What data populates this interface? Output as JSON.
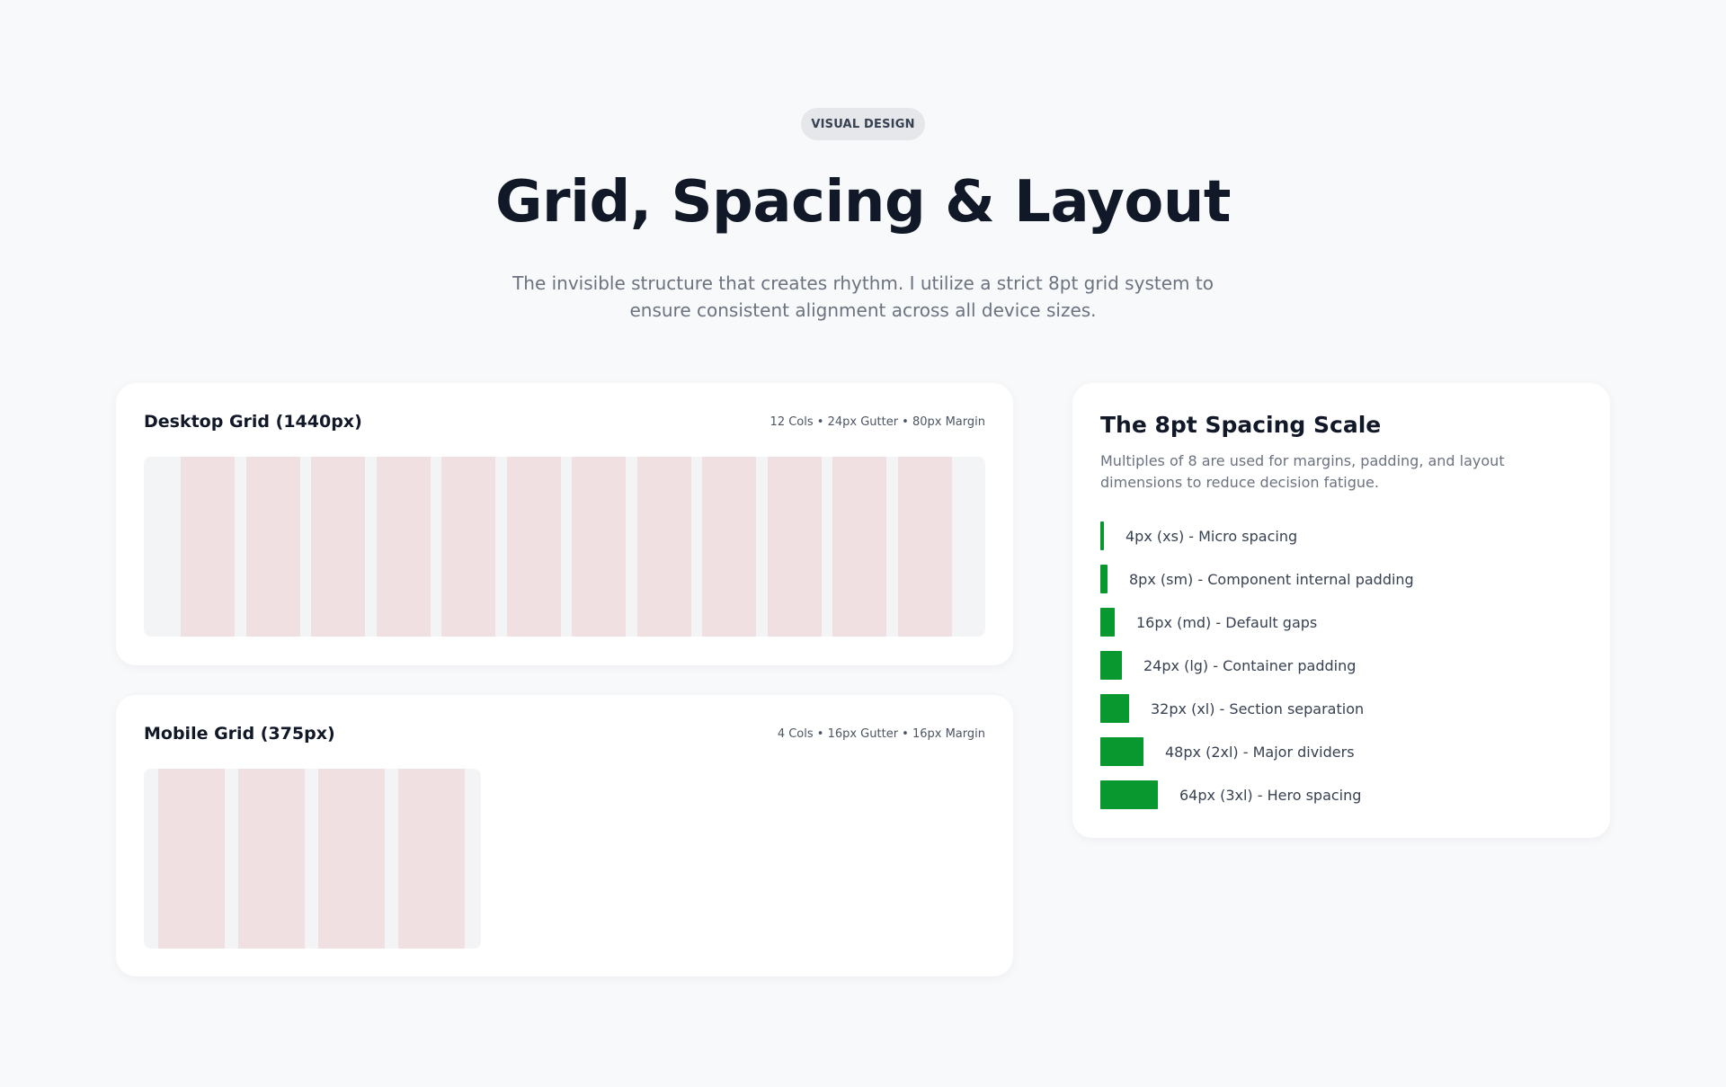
{
  "badge": "VISUAL DESIGN",
  "title": "Grid, Spacing & Layout",
  "subtitle": "The invisible structure that creates rhythm. I utilize a strict 8pt grid system to ensure consistent alignment across all device sizes.",
  "desktop_grid": {
    "title": "Desktop Grid (1440px)",
    "meta": "12 Cols • 24px Gutter • 80px Margin"
  },
  "mobile_grid": {
    "title": "Mobile Grid (375px)",
    "meta": "4 Cols • 16px Gutter • 16px Margin"
  },
  "spacing_scale": {
    "title": "The 8pt Spacing Scale",
    "description": "Multiples of 8 are used for margins, padding, and layout dimensions to reduce decision fatigue.",
    "items": [
      "4px (xs) - Micro spacing",
      "8px (sm) - Component internal padding",
      "16px (md) - Default gaps",
      "24px (lg) - Container padding",
      "32px (xl) - Section separation",
      "48px (2xl) - Major dividers",
      "64px (3xl) - Hero spacing"
    ]
  }
}
